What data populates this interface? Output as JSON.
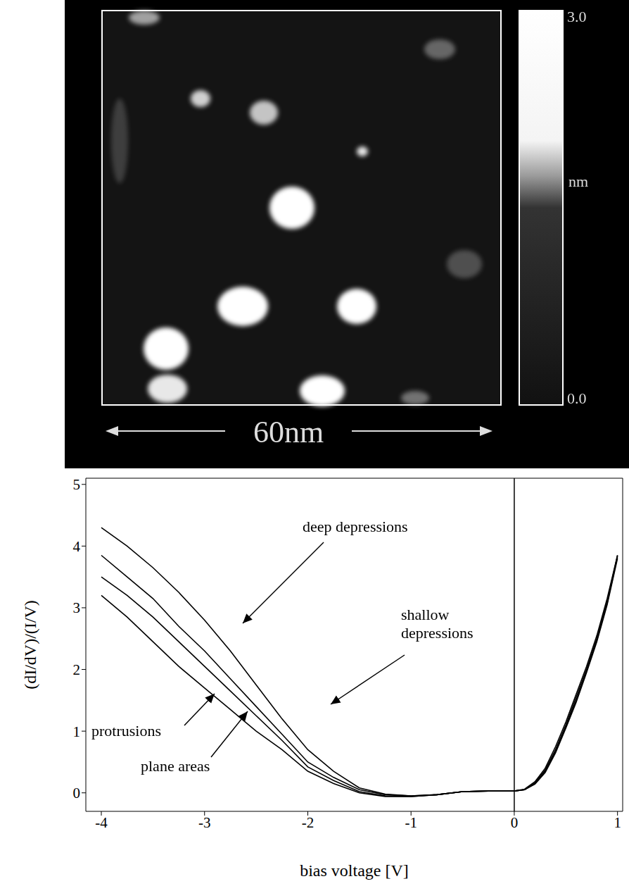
{
  "image": {
    "scale_bar": "60nm",
    "color_bar": {
      "range": [
        0,
        3
      ],
      "ticks": [
        {
          "value": 3,
          "label": "3.0"
        },
        {
          "value": 0,
          "label": "0.0"
        }
      ],
      "unit": "nm"
    }
  },
  "chart_data": {
    "type": "line",
    "x_label": "bias voltage [V]",
    "y_label": "(dI/dV)/(I/V)",
    "x": [
      -4,
      -3.75,
      -3.5,
      -3.25,
      -3,
      -2.75,
      -2.5,
      -2.25,
      -2,
      -1.75,
      -1.5,
      -1.25,
      -1,
      -0.75,
      -0.5,
      -0.25,
      0,
      0.1,
      0.2,
      0.3,
      0.4,
      0.5,
      0.6,
      0.7,
      0.8,
      0.9,
      1
    ],
    "series": [
      {
        "name": "deep depressions",
        "color": "#000000",
        "values": [
          4.3,
          4.0,
          3.65,
          3.25,
          2.8,
          2.3,
          1.75,
          1.2,
          0.7,
          0.35,
          0.08,
          -0.02,
          -0.05,
          -0.03,
          0.02,
          0.03,
          0.03,
          0.06,
          0.18,
          0.4,
          0.75,
          1.15,
          1.6,
          2.05,
          2.55,
          3.15,
          3.85
        ]
      },
      {
        "name": "shallow depressions",
        "color": "#000000",
        "values": [
          3.85,
          3.5,
          3.15,
          2.7,
          2.3,
          1.85,
          1.4,
          0.95,
          0.5,
          0.25,
          0.05,
          -0.03,
          -0.05,
          -0.03,
          0.02,
          0.03,
          0.03,
          0.05,
          0.16,
          0.37,
          0.7,
          1.1,
          1.55,
          2.0,
          2.5,
          3.1,
          3.85
        ]
      },
      {
        "name": "protrusions",
        "color": "#000000",
        "values": [
          3.5,
          3.2,
          2.85,
          2.45,
          2.05,
          1.65,
          1.25,
          0.85,
          0.42,
          0.2,
          0.02,
          -0.05,
          -0.06,
          -0.03,
          0.02,
          0.03,
          0.03,
          0.05,
          0.15,
          0.35,
          0.68,
          1.08,
          1.5,
          1.97,
          2.48,
          3.08,
          3.83
        ]
      },
      {
        "name": "plane areas",
        "color": "#000000",
        "values": [
          3.2,
          2.85,
          2.45,
          2.05,
          1.7,
          1.35,
          1.0,
          0.7,
          0.35,
          0.15,
          0.0,
          -0.06,
          -0.06,
          -0.03,
          0.02,
          0.03,
          0.03,
          0.05,
          0.14,
          0.33,
          0.65,
          1.05,
          1.47,
          1.95,
          2.45,
          3.05,
          3.8
        ]
      }
    ],
    "xlim": [
      -4.15,
      1.05
    ],
    "xticks": [
      -4,
      -3,
      -2,
      -1,
      0,
      1
    ],
    "ylim": [
      -0.3,
      5.1
    ],
    "yticks": [
      0,
      1,
      2,
      3,
      4,
      5
    ],
    "reference_lines": [
      {
        "x": 0
      }
    ],
    "grid": false
  }
}
